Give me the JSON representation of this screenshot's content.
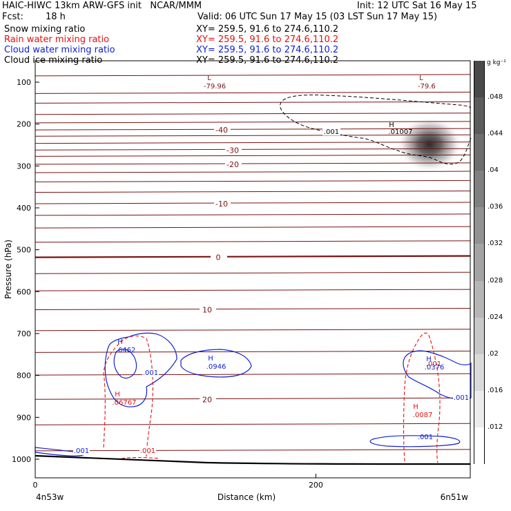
{
  "header": {
    "title_left": "HAIC-HIWC 13km ARW-GFS init   NCAR/MMM",
    "init": "Init: 12 UTC Sat 16 May 15",
    "fcst_label": "Fcst:",
    "fcst_value": "18 h",
    "valid": "Valid: 06 UTC Sun 17 May 15 (03 LST Sun 17 May 15)",
    "fields": [
      {
        "name": "Snow mixing ratio",
        "xy": "XY= 259.5, 91.6 to 274.6,110.2",
        "color": "#000000"
      },
      {
        "name": "Rain water mixing ratio",
        "xy": "XY= 259.5, 91.6 to 274.6,110.2",
        "color": "#e01010"
      },
      {
        "name": "Cloud water mixing ratio",
        "xy": "XY= 259.5, 91.6 to 274.6,110.2",
        "color": "#1020d0"
      },
      {
        "name": "Cloud ice mixing ratio",
        "xy": "XY= 259.5, 91.6 to 274.6,110.2",
        "color": "#000000"
      }
    ]
  },
  "chart_data": {
    "type": "cross-section",
    "ylabel": "Pressure (hPa)",
    "xlabel": "Distance (km)",
    "x_ticks": [
      0,
      200
    ],
    "y_ticks": [
      100,
      200,
      300,
      400,
      500,
      600,
      700,
      800,
      900,
      1000
    ],
    "x_range": [
      0,
      310
    ],
    "y_range": [
      1050,
      50
    ],
    "x_endpoints": [
      "4n53w",
      "6n51w"
    ],
    "isotherms": {
      "color": "#7a1010",
      "levels": [
        {
          "p": 85,
          "label": ""
        },
        {
          "p": 127,
          "label": ""
        },
        {
          "p": 150,
          "label": ""
        },
        {
          "p": 177,
          "label": ""
        },
        {
          "p": 197,
          "label": ""
        },
        {
          "p": 214,
          "label": "-40"
        },
        {
          "p": 229,
          "label": ""
        },
        {
          "p": 246,
          "label": ""
        },
        {
          "p": 262,
          "label": "-30"
        },
        {
          "p": 277,
          "label": ""
        },
        {
          "p": 296,
          "label": "-20"
        },
        {
          "p": 316,
          "label": ""
        },
        {
          "p": 338,
          "label": ""
        },
        {
          "p": 363,
          "label": ""
        },
        {
          "p": 390,
          "label": "-10"
        },
        {
          "p": 418,
          "label": ""
        },
        {
          "p": 448,
          "label": ""
        },
        {
          "p": 482,
          "label": ""
        },
        {
          "p": 518,
          "label": "0"
        },
        {
          "p": 557,
          "label": ""
        },
        {
          "p": 598,
          "label": ""
        },
        {
          "p": 643,
          "label": "10"
        },
        {
          "p": 693,
          "label": ""
        },
        {
          "p": 745,
          "label": ""
        },
        {
          "p": 799,
          "label": ""
        },
        {
          "p": 857,
          "label": "20"
        },
        {
          "p": 918,
          "label": ""
        },
        {
          "p": 980,
          "label": ""
        }
      ],
      "low_labels": [
        {
          "letter": "L",
          "value": "-79.96",
          "x": 124,
          "p": 98
        },
        {
          "letter": "L",
          "value": "-79.6",
          "x": 275,
          "p": 98
        }
      ]
    },
    "snow": {
      "max": 0.048,
      "center_x": 275,
      "center_p": 255
    },
    "cloud_ice": {
      "color": "#000000",
      "contour": ".001",
      "max_label": "H",
      "max_value": ".01007",
      "max_x": 262,
      "max_p": 190
    },
    "cloud_water": {
      "color": "#1020d0",
      "contour": ".001",
      "maxima": [
        {
          "letter": "H",
          "value": ".6462",
          "x": 65,
          "p": 735
        },
        {
          "letter": "H",
          "value": ".0946",
          "x": 126,
          "p": 765
        },
        {
          "letter": "H",
          "value": ".0376",
          "x": 285,
          "p": 770
        }
      ]
    },
    "rain_water": {
      "color": "#e01010",
      "contour": ".001",
      "maxima": [
        {
          "letter": "H",
          "value": ".06767",
          "x": 62,
          "p": 850
        },
        {
          "letter": "H",
          "value": ".0087",
          "x": 282,
          "p": 900
        },
        {
          "letter": "H",
          "value": ".001",
          "x": 286,
          "p": 760
        }
      ]
    },
    "colorbar": {
      "unit": "g kg⁻¹",
      "ticks": [
        ".048",
        ".044",
        ".04",
        ".036",
        ".032",
        ".028",
        ".024",
        ".02",
        ".016",
        ".012"
      ],
      "colors": [
        "#4a4a4a",
        "#5c5c5c",
        "#6e6e6e",
        "#808080",
        "#929292",
        "#a4a4a4",
        "#b6b6b6",
        "#c8c8c8",
        "#dadada",
        "#ececec",
        "#ffffff"
      ]
    }
  }
}
